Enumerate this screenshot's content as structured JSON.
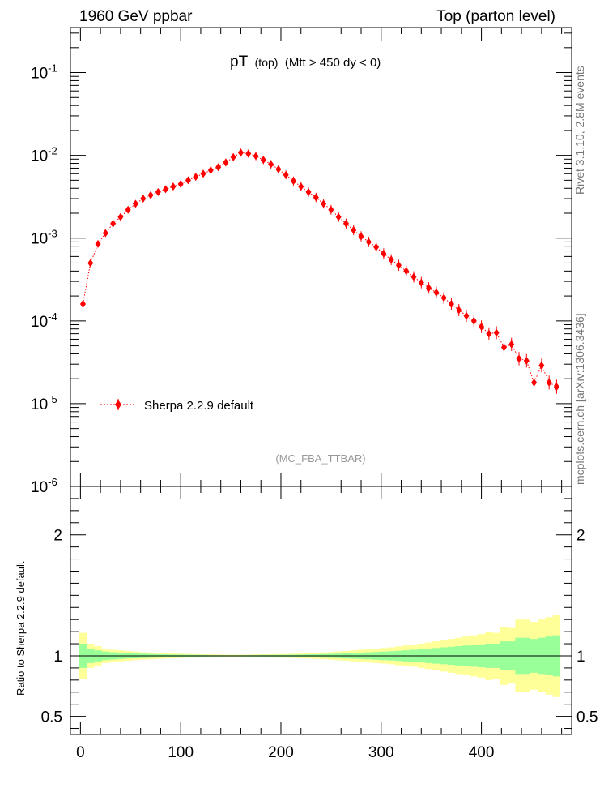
{
  "header": {
    "left": "1960 GeV ppbar",
    "right": "Top (parton level)"
  },
  "plot_title": {
    "main": "pT",
    "small": "(top)",
    "rest": "(Mtt > 450 dy < 0)"
  },
  "side_labels": {
    "rivet": "Rivet 3.1.10, 2.8M events",
    "mcplots": "mcplots.cern.ch [arXiv:1306.3436]"
  },
  "watermark": "(MC_FBA_TTBAR)",
  "legend": {
    "label": "Sherpa 2.2.9 default"
  },
  "ratio_ylabel": "Ratio to Sherpa 2.2.9 default",
  "colors": {
    "series": "#ff0000",
    "band_inner": "#99ff99",
    "band_outer": "#ffff99"
  },
  "chart_data": [
    {
      "type": "line",
      "panel": "main",
      "yscale": "log",
      "ylim": [
        1e-06,
        0.35
      ],
      "xlim": [
        -10,
        490
      ],
      "y_tick_labels": [
        "10^-6",
        "10^-5",
        "10^-4",
        "10^-3",
        "10^-2",
        "10^-1"
      ],
      "series": [
        {
          "name": "Sherpa 2.2.9 default",
          "x": [
            2.5,
            10,
            17.5,
            25,
            32.5,
            40,
            47.5,
            55,
            62.5,
            70,
            77.5,
            85,
            92.5,
            100,
            107.5,
            115,
            122.5,
            130,
            137.5,
            145,
            152.5,
            160,
            167.5,
            175,
            182.5,
            190,
            197.5,
            205,
            212.5,
            220,
            227.5,
            235,
            242.5,
            250,
            257.5,
            265,
            272.5,
            280,
            287.5,
            295,
            302.5,
            310,
            317.5,
            325,
            332.5,
            340,
            347.5,
            355,
            362.5,
            370,
            377.5,
            385,
            392.5,
            400,
            407.5,
            415,
            422.5,
            430,
            437.5,
            445,
            452.5,
            460,
            467.5,
            475
          ],
          "y": [
            0.00016,
            0.0005,
            0.00085,
            0.00115,
            0.0015,
            0.0018,
            0.0022,
            0.0026,
            0.003,
            0.0033,
            0.0036,
            0.0039,
            0.0042,
            0.0045,
            0.005,
            0.0055,
            0.006,
            0.0066,
            0.0072,
            0.0082,
            0.0095,
            0.0108,
            0.0105,
            0.0098,
            0.0088,
            0.0078,
            0.0068,
            0.0058,
            0.0049,
            0.0042,
            0.0036,
            0.0031,
            0.0026,
            0.0022,
            0.0018,
            0.0015,
            0.00125,
            0.00105,
            0.0009,
            0.00078,
            0.00065,
            0.00055,
            0.00047,
            0.0004,
            0.00034,
            0.00029,
            0.00025,
            0.00022,
            0.00019,
            0.00016,
            0.000135,
            0.000115,
            0.0001,
            8.5e-05,
            7e-05,
            7.2e-05,
            4.8e-05,
            5.2e-05,
            3.5e-05,
            3.3e-05,
            1.8e-05,
            2.9e-05,
            1.8e-05,
            1.6e-05
          ],
          "error_bar_note": "vertical error bars shown on each point"
        }
      ]
    },
    {
      "type": "area",
      "panel": "ratio",
      "ylim": [
        0.35,
        2.4
      ],
      "y_ticks": [
        0.5,
        1,
        2
      ],
      "y_tick_labels": [
        "0.5",
        "1",
        "2"
      ],
      "x_ticks": [
        0,
        100,
        200,
        300,
        400
      ],
      "x_tick_labels": [
        "0",
        "100",
        "200",
        "300",
        "400"
      ],
      "xlim": [
        -10,
        490
      ],
      "reference_line": 1,
      "bins_x": [
        2.5,
        10,
        17.5,
        25,
        32.5,
        40,
        47.5,
        55,
        62.5,
        70,
        77.5,
        85,
        92.5,
        100,
        107.5,
        115,
        122.5,
        130,
        137.5,
        145,
        152.5,
        160,
        167.5,
        175,
        182.5,
        190,
        197.5,
        205,
        212.5,
        220,
        227.5,
        235,
        242.5,
        250,
        257.5,
        265,
        272.5,
        280,
        287.5,
        295,
        302.5,
        310,
        317.5,
        325,
        332.5,
        340,
        347.5,
        355,
        362.5,
        370,
        377.5,
        385,
        392.5,
        400,
        407.5,
        415,
        422.5,
        430,
        437.5,
        445,
        452.5,
        460,
        467.5,
        475
      ],
      "band_outer_halfwidth": [
        0.19,
        0.1,
        0.08,
        0.06,
        0.05,
        0.045,
        0.04,
        0.035,
        0.03,
        0.028,
        0.025,
        0.022,
        0.02,
        0.018,
        0.016,
        0.015,
        0.013,
        0.012,
        0.011,
        0.01,
        0.01,
        0.01,
        0.011,
        0.012,
        0.013,
        0.014,
        0.015,
        0.016,
        0.018,
        0.02,
        0.022,
        0.025,
        0.028,
        0.032,
        0.036,
        0.04,
        0.045,
        0.05,
        0.055,
        0.06,
        0.065,
        0.07,
        0.078,
        0.085,
        0.09,
        0.1,
        0.11,
        0.12,
        0.13,
        0.14,
        0.15,
        0.16,
        0.17,
        0.18,
        0.2,
        0.19,
        0.24,
        0.23,
        0.3,
        0.3,
        0.28,
        0.3,
        0.32,
        0.34
      ],
      "band_inner_halfwidth": [
        0.1,
        0.06,
        0.045,
        0.035,
        0.03,
        0.026,
        0.022,
        0.02,
        0.018,
        0.016,
        0.014,
        0.012,
        0.011,
        0.01,
        0.009,
        0.008,
        0.007,
        0.006,
        0.006,
        0.005,
        0.005,
        0.005,
        0.006,
        0.006,
        0.007,
        0.007,
        0.008,
        0.009,
        0.01,
        0.011,
        0.012,
        0.013,
        0.015,
        0.017,
        0.019,
        0.021,
        0.024,
        0.026,
        0.029,
        0.032,
        0.035,
        0.038,
        0.042,
        0.046,
        0.05,
        0.055,
        0.06,
        0.065,
        0.07,
        0.075,
        0.08,
        0.085,
        0.09,
        0.095,
        0.1,
        0.1,
        0.12,
        0.12,
        0.15,
        0.15,
        0.14,
        0.15,
        0.16,
        0.17
      ]
    }
  ]
}
